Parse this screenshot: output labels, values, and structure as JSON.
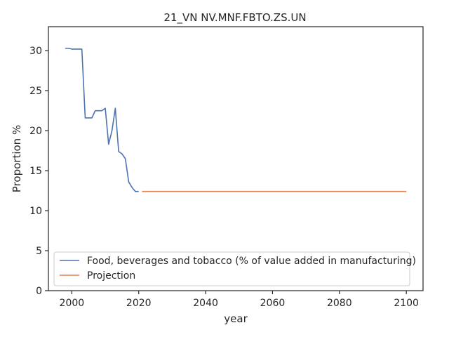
{
  "chart_data": {
    "type": "line",
    "title": "21_VN NV.MNF.FBTO.ZS.UN",
    "xlabel": "year",
    "ylabel": "Proportion %",
    "xlim": [
      1993,
      2105
    ],
    "ylim": [
      0,
      33
    ],
    "xticks": [
      2000,
      2020,
      2040,
      2060,
      2080,
      2100
    ],
    "yticks": [
      0,
      5,
      10,
      15,
      20,
      25,
      30
    ],
    "grid": false,
    "legend_position": "lower-left",
    "series": [
      {
        "name": "Food, beverages and tobacco (% of value added in manufacturing)",
        "color": "#4c72b0",
        "x": [
          1998,
          1999,
          2000,
          2001,
          2002,
          2003,
          2004,
          2005,
          2006,
          2007,
          2008,
          2009,
          2010,
          2011,
          2012,
          2013,
          2014,
          2015,
          2016,
          2017,
          2018,
          2019,
          2020
        ],
        "y": [
          30.3,
          30.3,
          30.2,
          30.2,
          30.2,
          30.2,
          21.6,
          21.6,
          21.6,
          22.5,
          22.5,
          22.5,
          22.8,
          18.3,
          20.0,
          22.8,
          17.4,
          17.1,
          16.5,
          13.6,
          12.9,
          12.4,
          12.4
        ]
      },
      {
        "name": "Projection",
        "color": "#dd8452",
        "x": [
          2021,
          2100
        ],
        "y": [
          12.4,
          12.4
        ]
      }
    ]
  }
}
